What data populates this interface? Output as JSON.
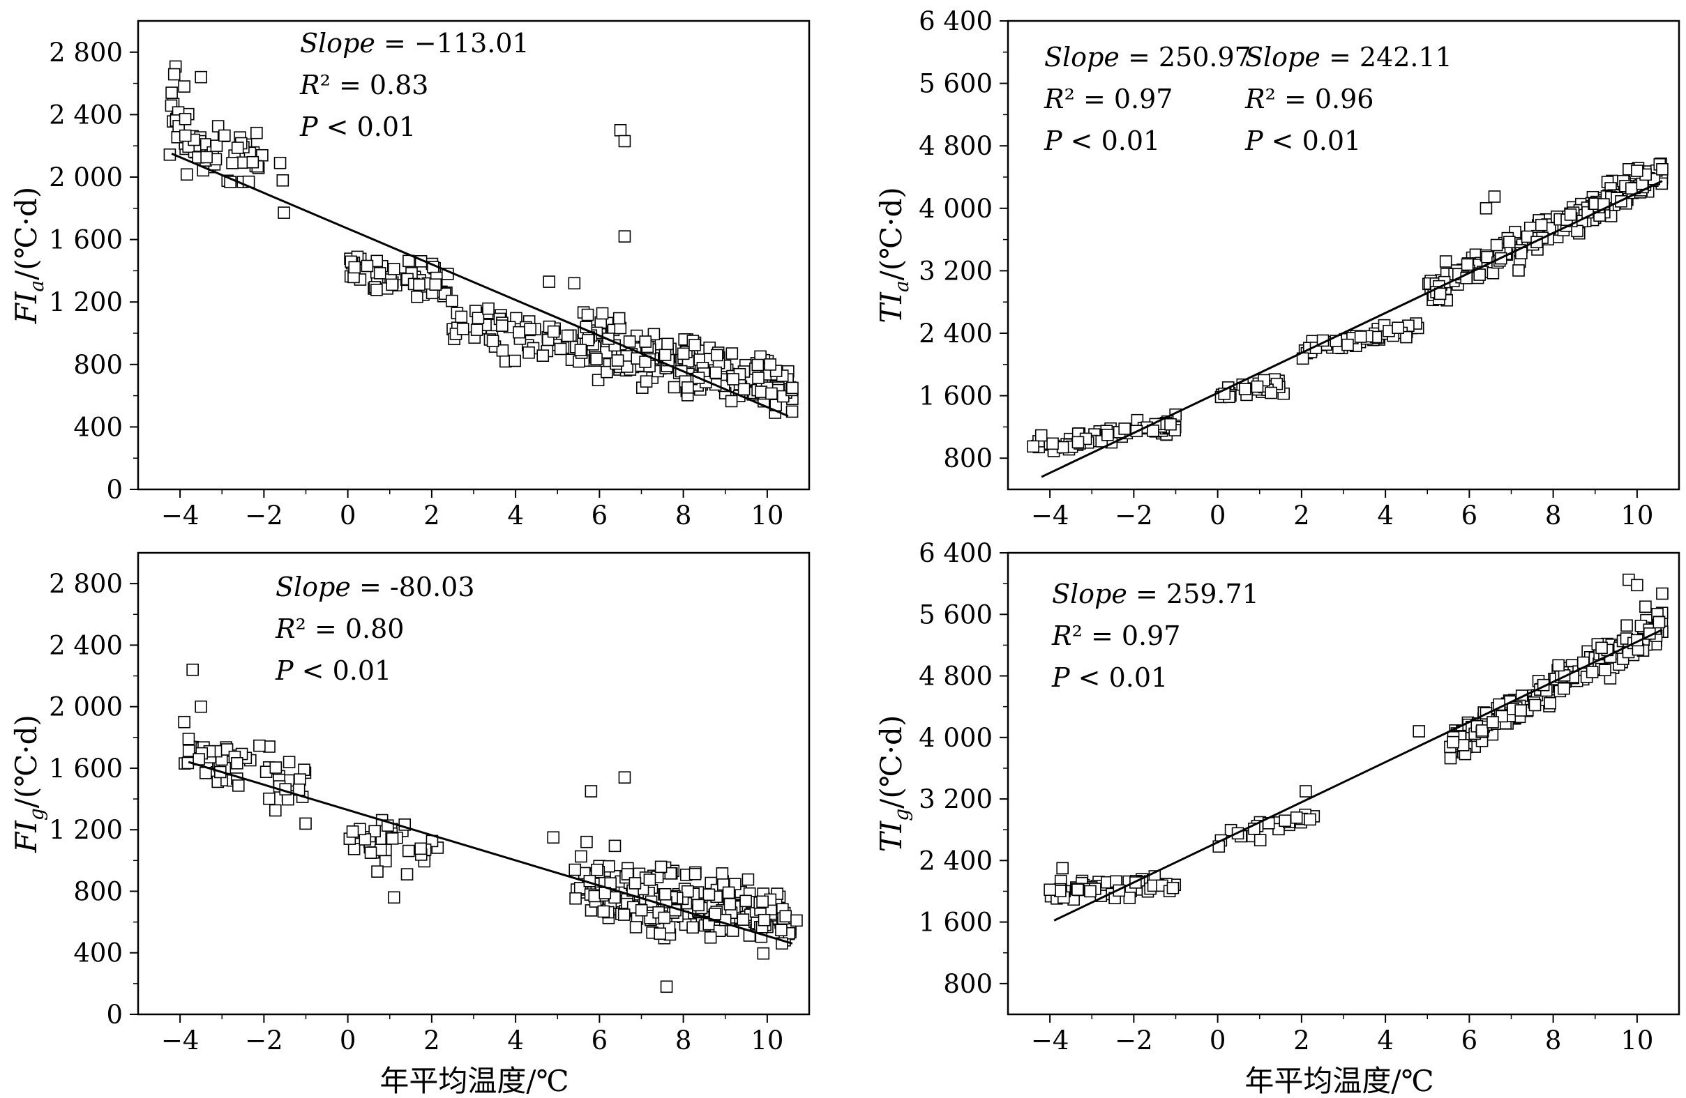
{
  "figure": {
    "common_xlabel": "年平均温度/℃"
  },
  "chart_data": [
    {
      "id": "fia",
      "type": "scatter",
      "xlabel": "",
      "ylabel_main": "FI",
      "ylabel_sub": "a",
      "ylabel_unit": "/(℃·d)",
      "xlim": [
        -5,
        11
      ],
      "ylim": [
        0,
        3000
      ],
      "xticks": [
        -4,
        -2,
        0,
        2,
        4,
        6,
        8,
        10
      ],
      "yticks": [
        0,
        400,
        800,
        1200,
        1600,
        2000,
        2400,
        2800
      ],
      "ytick_labels": [
        "0",
        "400",
        "800",
        "1 200",
        "1 600",
        "2 000",
        "2 400",
        "2 800"
      ],
      "annotations": [
        {
          "line1": "Slope = −113.01",
          "line2": "R² = 0.83",
          "line3": "P < 0.01"
        }
      ],
      "fit_lines": [
        {
          "x": [
            -4.2,
            10.5
          ],
          "y": [
            2150,
            470
          ]
        }
      ],
      "seed": 11,
      "clusters": [
        {
          "n": 65,
          "x": [
            -4.3,
            -1.5
          ],
          "center": [
            -3.0,
            2180
          ],
          "slope": -130,
          "noise": 180
        },
        {
          "n": 55,
          "x": [
            0.0,
            2.5
          ],
          "center": [
            1.2,
            1350
          ],
          "slope": -60,
          "noise": 110
        },
        {
          "n": 55,
          "x": [
            2.5,
            5.5
          ],
          "center": [
            3.8,
            1000
          ],
          "slope": -60,
          "noise": 120
        },
        {
          "n": 230,
          "x": [
            5.5,
            10.6
          ],
          "center": [
            8.0,
            800
          ],
          "slope": -60,
          "noise": 160
        }
      ],
      "points": [
        {
          "x": -3.5,
          "y": 2640
        },
        {
          "x": -3.9,
          "y": 2580
        },
        {
          "x": -4.2,
          "y": 2540
        },
        {
          "x": 6.5,
          "y": 2300
        },
        {
          "x": 6.6,
          "y": 2230
        },
        {
          "x": 6.6,
          "y": 1620
        },
        {
          "x": 5.4,
          "y": 1320
        },
        {
          "x": 4.8,
          "y": 1330
        },
        {
          "x": 10.6,
          "y": 650
        }
      ]
    },
    {
      "id": "tia",
      "type": "scatter",
      "xlabel": "",
      "ylabel_main": "TI",
      "ylabel_sub": "a",
      "ylabel_unit": "/(℃·d)",
      "xlim": [
        -5,
        11
      ],
      "ylim": [
        400,
        6400
      ],
      "xticks": [
        -4,
        -2,
        0,
        2,
        4,
        6,
        8,
        10
      ],
      "yticks": [
        800,
        1600,
        2400,
        3200,
        4000,
        4800,
        5600,
        6400
      ],
      "ytick_labels": [
        "800",
        "1 600",
        "2 400",
        "3 200",
        "4 000",
        "4 800",
        "5 600",
        "6 400"
      ],
      "annotations": [
        {
          "line1": "Slope = 250.97",
          "line2": "R² = 0.97",
          "line3": "P < 0.01"
        },
        {
          "line1": "Slope = 242.11",
          "line2": "R² = 0.96",
          "line3": "P < 0.01"
        }
      ],
      "fit_lines": [
        {
          "x": [
            -4.2,
            10.6
          ],
          "y": [
            560,
            4350
          ]
        }
      ],
      "seed": 23,
      "clusters": [
        {
          "n": 70,
          "x": [
            -4.4,
            -1.0
          ],
          "center": [
            -2.7,
            1100
          ],
          "slope": 80,
          "noise": 90
        },
        {
          "n": 30,
          "x": [
            0.0,
            1.6
          ],
          "center": [
            0.9,
            1680
          ],
          "slope": 60,
          "noise": 70
        },
        {
          "n": 50,
          "x": [
            2.0,
            5.0
          ],
          "center": [
            3.6,
            2350
          ],
          "slope": 110,
          "noise": 80
        },
        {
          "n": 230,
          "x": [
            5.0,
            10.6
          ],
          "center": [
            7.8,
            3700
          ],
          "slope": 270,
          "noise": 150
        }
      ],
      "points": [
        {
          "x": 6.6,
          "y": 4150
        },
        {
          "x": 6.4,
          "y": 4000
        },
        {
          "x": 10.6,
          "y": 4500
        },
        {
          "x": 9.8,
          "y": 4500
        },
        {
          "x": 10.0,
          "y": 4480
        },
        {
          "x": -4.4,
          "y": 950
        }
      ]
    },
    {
      "id": "fig",
      "type": "scatter",
      "xlabel": "",
      "ylabel_main": "FI",
      "ylabel_sub": "g",
      "ylabel_unit": "/(℃·d)",
      "xlim": [
        -5,
        11
      ],
      "ylim": [
        0,
        3000
      ],
      "xticks": [
        -4,
        -2,
        0,
        2,
        4,
        6,
        8,
        10
      ],
      "yticks": [
        0,
        400,
        800,
        1200,
        1600,
        2000,
        2400,
        2800
      ],
      "ytick_labels": [
        "0",
        "400",
        "800",
        "1 200",
        "1 600",
        "2 000",
        "2 400",
        "2 800"
      ],
      "annotations": [
        {
          "line1": "Slope = -80.03",
          "line2": "R² = 0.80",
          "line3": "P < 0.01"
        }
      ],
      "fit_lines": [
        {
          "x": [
            -3.8,
            10.6
          ],
          "y": [
            1640,
            460
          ]
        }
      ],
      "seed": 37,
      "clusters": [
        {
          "n": 60,
          "x": [
            -4.0,
            -1.0
          ],
          "center": [
            -2.6,
            1580
          ],
          "slope": -80,
          "noise": 150
        },
        {
          "n": 35,
          "x": [
            0.0,
            2.2
          ],
          "center": [
            1.0,
            1120
          ],
          "slope": -60,
          "noise": 140
        },
        {
          "n": 240,
          "x": [
            5.4,
            10.6
          ],
          "center": [
            8.0,
            720
          ],
          "slope": -40,
          "noise": 170
        }
      ],
      "points": [
        {
          "x": -3.7,
          "y": 2240
        },
        {
          "x": -3.5,
          "y": 2000
        },
        {
          "x": -3.9,
          "y": 1900
        },
        {
          "x": 6.6,
          "y": 1540
        },
        {
          "x": 5.8,
          "y": 1450
        },
        {
          "x": 7.6,
          "y": 180
        },
        {
          "x": 4.9,
          "y": 1150
        },
        {
          "x": 10.7,
          "y": 610
        },
        {
          "x": 1.1,
          "y": 760
        }
      ]
    },
    {
      "id": "tig",
      "type": "scatter",
      "xlabel": "",
      "ylabel_main": "TI",
      "ylabel_sub": "g",
      "ylabel_unit": "/(℃·d)",
      "xlim": [
        -5,
        11
      ],
      "ylim": [
        400,
        6400
      ],
      "xticks": [
        -4,
        -2,
        0,
        2,
        4,
        6,
        8,
        10
      ],
      "yticks": [
        800,
        1600,
        2400,
        3200,
        4000,
        4800,
        5600,
        6400
      ],
      "ytick_labels": [
        "800",
        "1 600",
        "2 400",
        "3 200",
        "4 000",
        "4 800",
        "5 600",
        "6 400"
      ],
      "annotations": [
        {
          "line1": "Slope = 259.71",
          "line2": "R² = 0.97",
          "line3": "P < 0.01"
        }
      ],
      "fit_lines": [
        {
          "x": [
            -3.9,
            10.6
          ],
          "y": [
            1620,
            5400
          ]
        }
      ],
      "seed": 53,
      "clusters": [
        {
          "n": 55,
          "x": [
            -4.0,
            -1.0
          ],
          "center": [
            -2.6,
            2060
          ],
          "slope": 60,
          "noise": 110
        },
        {
          "n": 25,
          "x": [
            0.0,
            2.3
          ],
          "center": [
            1.1,
            2800
          ],
          "slope": 140,
          "noise": 90
        },
        {
          "n": 230,
          "x": [
            5.5,
            10.6
          ],
          "center": [
            8.0,
            4650
          ],
          "slope": 300,
          "noise": 170
        }
      ],
      "points": [
        {
          "x": 9.8,
          "y": 6050
        },
        {
          "x": 10.0,
          "y": 5980
        },
        {
          "x": 10.6,
          "y": 5870
        },
        {
          "x": 10.2,
          "y": 5700
        },
        {
          "x": 4.8,
          "y": 4080
        },
        {
          "x": 2.1,
          "y": 3300
        },
        {
          "x": -3.7,
          "y": 2300
        },
        {
          "x": -4.0,
          "y": 2020
        }
      ]
    }
  ]
}
